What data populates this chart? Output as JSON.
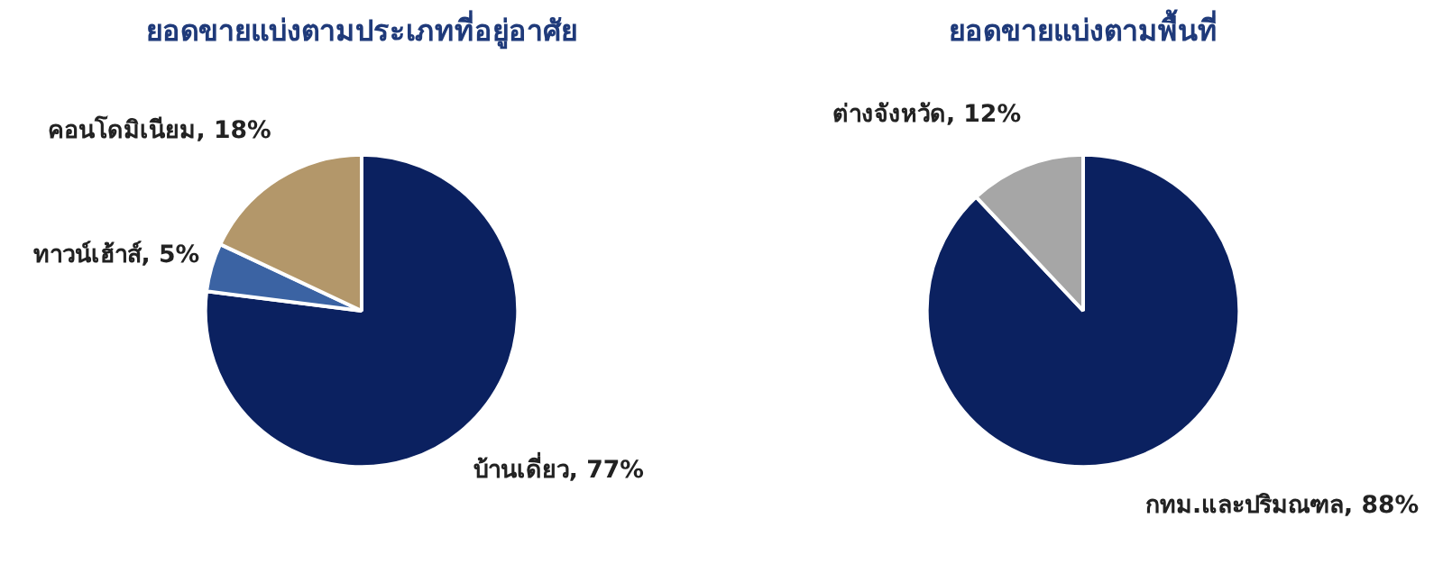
{
  "chart_data": [
    {
      "type": "pie",
      "title": "ยอดขายแบ่งตามประเภทที่อยู่อาศัย",
      "categories": [
        "บ้านเดี่ยว",
        "ทาวน์เฮ้าส์",
        "คอนโดมิเนียม"
      ],
      "values": [
        77,
        5,
        18
      ],
      "colors": [
        "#0b2160",
        "#3b63a3",
        "#b3976a"
      ],
      "value_labels": [
        "77%",
        "5%",
        "18%"
      ]
    },
    {
      "type": "pie",
      "title": "ยอดขายแบ่งตามพื้นที่",
      "categories": [
        "กทม.และปริมณฑล",
        "ต่างจังหวัด"
      ],
      "values": [
        88,
        12
      ],
      "colors": [
        "#0b2160",
        "#a6a6a6"
      ],
      "value_labels": [
        "88%",
        "12%"
      ]
    }
  ]
}
